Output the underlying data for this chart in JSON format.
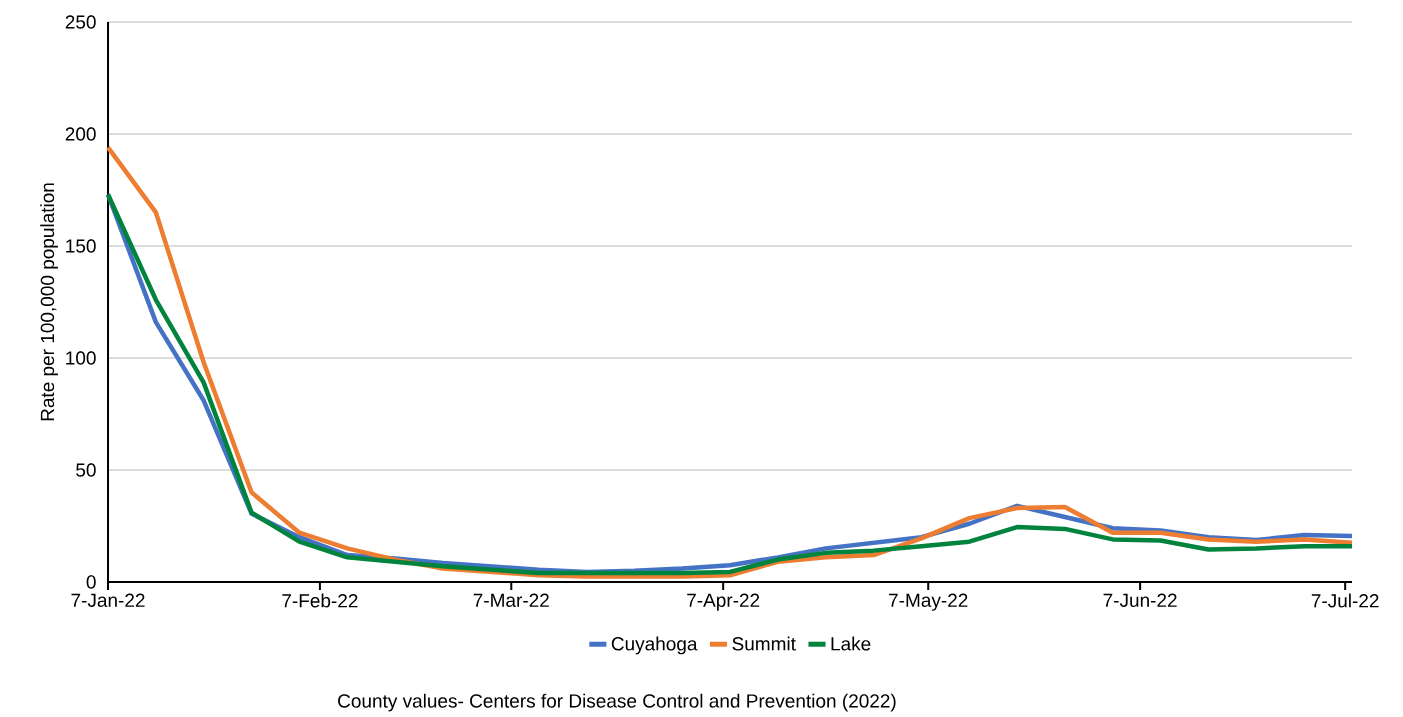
{
  "chart_data": {
    "type": "line",
    "ylabel": "Rate per 100,000 population",
    "annotations": [
      "County values- Centers for Disease Control and Prevention (2022)"
    ],
    "x": [
      "2022-01-07",
      "2022-01-14",
      "2022-01-21",
      "2022-01-28",
      "2022-02-04",
      "2022-02-11",
      "2022-02-18",
      "2022-02-25",
      "2022-03-04",
      "2022-03-11",
      "2022-03-18",
      "2022-03-25",
      "2022-04-01",
      "2022-04-08",
      "2022-04-15",
      "2022-04-22",
      "2022-04-29",
      "2022-05-06",
      "2022-05-13",
      "2022-05-20",
      "2022-05-27",
      "2022-06-03",
      "2022-06-10",
      "2022-06-17",
      "2022-06-24",
      "2022-07-01",
      "2022-07-08"
    ],
    "series": [
      {
        "name": "Cuyahoga",
        "color": "#4472c4",
        "values": [
          173,
          116,
          81,
          30.5,
          20,
          12,
          10.5,
          8.5,
          7,
          5.5,
          4.5,
          5,
          6,
          7.5,
          11,
          15,
          17.5,
          20,
          26,
          34,
          29,
          24,
          23,
          20,
          18.7,
          21,
          20.5
        ]
      },
      {
        "name": "Summit",
        "color": "#ed7d31",
        "values": [
          194,
          165,
          98,
          40,
          22,
          15,
          10,
          6,
          4.5,
          3,
          2.5,
          2.5,
          2.5,
          3,
          9,
          11,
          12,
          19.5,
          28.5,
          33,
          33.5,
          22,
          22,
          19,
          18,
          19,
          17.5
        ]
      },
      {
        "name": "Lake",
        "color": "#00843d",
        "values": [
          173,
          126,
          89,
          31,
          18,
          11,
          9,
          7,
          5.5,
          4,
          4,
          4,
          4,
          4.5,
          10,
          13,
          14,
          16,
          18,
          24.5,
          23.7,
          19,
          18.5,
          14.5,
          15,
          16,
          16
        ]
      }
    ],
    "xlim": [
      "2022-01-07",
      "2022-07-08"
    ],
    "xticks": [
      {
        "value": "2022-01-07",
        "label": "7-Jan-22"
      },
      {
        "value": "2022-02-07",
        "label": "7-Feb-22"
      },
      {
        "value": "2022-03-07",
        "label": "7-Mar-22"
      },
      {
        "value": "2022-04-07",
        "label": "7-Apr-22"
      },
      {
        "value": "2022-05-07",
        "label": "7-May-22"
      },
      {
        "value": "2022-06-07",
        "label": "7-Jun-22"
      },
      {
        "value": "2022-07-07",
        "label": "7-Jul-22"
      }
    ],
    "ylim": [
      0,
      250
    ],
    "yticks": [
      0,
      50,
      100,
      150,
      200,
      250
    ],
    "grid": "y",
    "legend": "bottom",
    "line_style": "solid",
    "marker": "none"
  }
}
